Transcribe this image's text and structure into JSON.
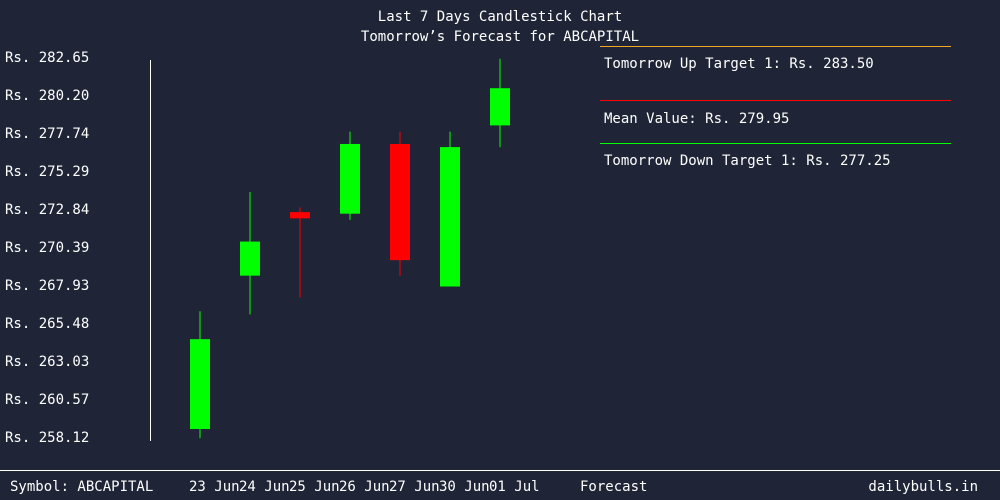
{
  "title": "Last 7 Days Candlestick Chart",
  "subtitle": "Tomorrow’s Forecast for ABCAPITAL",
  "footer": {
    "symbol": "Symbol: ABCAPITAL",
    "forecast_label": "Forecast",
    "brand": "dailybulls.in"
  },
  "colors": {
    "up": "#00ff00",
    "down": "#ff0000",
    "background": "#1f2536",
    "up_target": "#f5a623",
    "mean": "#ff0000",
    "down_target": "#00ff00"
  },
  "forecast": {
    "up_target_label": "Tomorrow Up Target 1: Rs. 283.50",
    "mean_label": "Mean Value: Rs. 279.95",
    "down_target_label": "Tomorrow Down Target 1: Rs. 277.25",
    "up_target": 283.5,
    "mean": 279.95,
    "down_target": 277.25
  },
  "chart_data": {
    "type": "candlestick",
    "title": "Last 7 Days Candlestick Chart",
    "subtitle": "Tomorrow’s Forecast for ABCAPITAL",
    "y_ticks": [
      "Rs. 282.65",
      "Rs. 280.20",
      "Rs. 277.74",
      "Rs. 275.29",
      "Rs. 272.84",
      "Rs. 270.39",
      "Rs. 267.93",
      "Rs. 265.48",
      "Rs. 263.03",
      "Rs. 260.57",
      "Rs. 258.12"
    ],
    "ylim": [
      258.12,
      282.65
    ],
    "categories": [
      "23 Jun",
      "24 Jun",
      "25 Jun",
      "26 Jun",
      "27 Jun",
      "30 Jun",
      "01 Jul"
    ],
    "candles": [
      {
        "date": "23 Jun",
        "open": 258.7,
        "high": 266.3,
        "low": 258.1,
        "close": 264.5
      },
      {
        "date": "24 Jun",
        "open": 268.6,
        "high": 274.0,
        "low": 266.1,
        "close": 270.8
      },
      {
        "date": "25 Jun",
        "open": 272.7,
        "high": 273.0,
        "low": 267.2,
        "close": 272.3
      },
      {
        "date": "26 Jun",
        "open": 272.6,
        "high": 277.9,
        "low": 272.2,
        "close": 277.1
      },
      {
        "date": "27 Jun",
        "open": 277.1,
        "high": 277.9,
        "low": 268.6,
        "close": 269.6
      },
      {
        "date": "30 Jun",
        "open": 267.9,
        "high": 277.9,
        "low": 267.9,
        "close": 276.9
      },
      {
        "date": "01 Jul",
        "open": 278.3,
        "high": 282.6,
        "low": 276.9,
        "close": 280.7
      }
    ]
  }
}
